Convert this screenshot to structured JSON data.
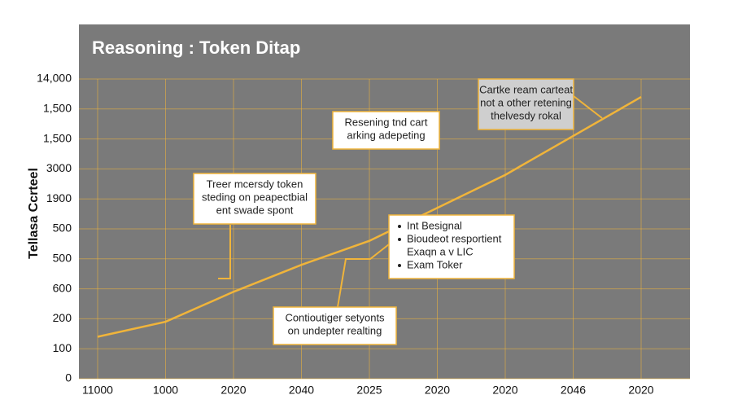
{
  "chart_data": {
    "type": "line",
    "title": "Reasoning : Token Ditap",
    "y_label": "Tellasa Ccrteel",
    "categories": [
      "11000",
      "1000",
      "2020",
      "2040",
      "2025",
      "2020",
      "2020",
      "2046",
      "2020"
    ],
    "series": [
      {
        "color": "#f0b43a",
        "values": [
          1.4,
          1.9,
          2.9,
          3.8,
          4.6,
          5.7,
          6.8,
          8.1,
          9.4
        ]
      }
    ],
    "ylim": [
      0,
      10
    ],
    "yticks": [
      {
        "value": 0,
        "label": "0"
      },
      {
        "value": 1,
        "label": "100"
      },
      {
        "value": 2,
        "label": "200"
      },
      {
        "value": 3,
        "label": "600"
      },
      {
        "value": 4,
        "label": "500"
      },
      {
        "value": 5,
        "label": "500"
      },
      {
        "value": 6,
        "label": "1900"
      },
      {
        "value": 7,
        "label": "3000"
      },
      {
        "value": 8,
        "label": "1,500"
      },
      {
        "value": 9,
        "label": "1,500"
      },
      {
        "value": 10,
        "label": "14,000"
      }
    ],
    "grid": true,
    "annotations": [
      {
        "lines": [
          "Cartke ream carteat",
          "not a other retening",
          "thelvesdy rokal"
        ]
      },
      {
        "lines": [
          "Resening tnd cart",
          "arking adepeting"
        ]
      },
      {
        "lines": [
          "Treer mcersdy token",
          "steding on peapectbial",
          "ent swade spont"
        ]
      },
      {
        "lines": [
          "Int Besignal",
          "Bioudeot resportient",
          "Exaqn a v LIC",
          "Exam Toker"
        ]
      },
      {
        "lines": [
          "Contioutiger setyonts",
          "on undepter realting"
        ]
      }
    ]
  }
}
